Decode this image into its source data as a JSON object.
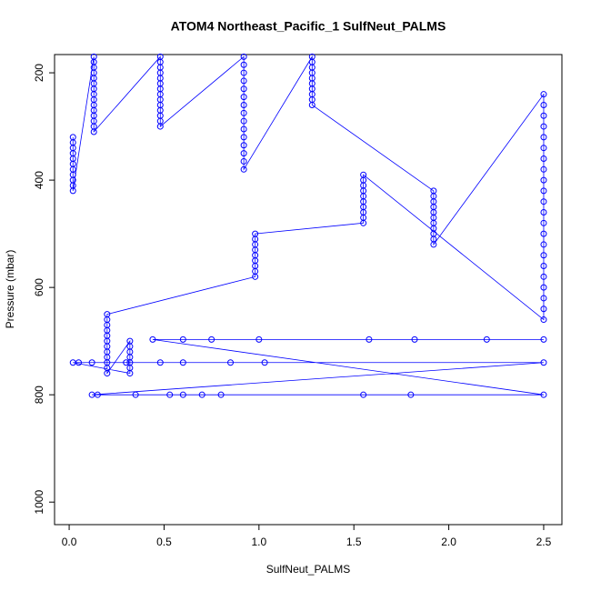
{
  "chart_data": {
    "type": "scatter-line",
    "title": "ATOM4 Northeast_Pacific_1 SulfNeut_PALMS",
    "x_label": "SulfNeut_PALMS",
    "y_label": "Pressure (mbar)",
    "color": "#0000ff",
    "xlim": [
      -0.077,
      2.596
    ],
    "ylim": [
      1042,
      166
    ],
    "xticks": [
      {
        "value": 0,
        "label": "0.0"
      },
      0.5,
      {
        "value": 1,
        "label": "1.0"
      },
      1.5,
      {
        "value": 2,
        "label": "2.0"
      },
      2.5
    ],
    "yticks": [
      200,
      400,
      600,
      800,
      1000
    ],
    "x": [
      0.02,
      0.02,
      0.02,
      0.02,
      0.02,
      0.02,
      0.02,
      0.02,
      0.02,
      0.02,
      0.02,
      0.13,
      0.13,
      0.13,
      0.13,
      0.13,
      0.13,
      0.13,
      0.13,
      0.13,
      0.13,
      0.13,
      0.13,
      0.13,
      0.13,
      0.13,
      0.48,
      0.48,
      0.48,
      0.48,
      0.48,
      0.48,
      0.48,
      0.48,
      0.48,
      0.48,
      0.48,
      0.48,
      0.48,
      0.48,
      0.92,
      0.92,
      0.92,
      0.92,
      0.92,
      0.92,
      0.92,
      0.92,
      0.92,
      0.92,
      0.92,
      0.92,
      0.92,
      0.92,
      0.92,
      1.28,
      1.28,
      1.28,
      1.28,
      1.28,
      1.28,
      1.28,
      1.28,
      1.28,
      1.28,
      1.92,
      1.92,
      1.92,
      1.92,
      1.92,
      1.92,
      1.92,
      1.92,
      1.92,
      1.92,
      1.92,
      2.5,
      2.5,
      2.5,
      2.5,
      2.5,
      2.5,
      2.5,
      2.5,
      2.5,
      2.5,
      2.5,
      2.5,
      2.5,
      2.5,
      2.5,
      2.5,
      2.5,
      2.5,
      2.5,
      2.5,
      2.5,
      2.5,
      1.55,
      1.55,
      1.55,
      1.55,
      1.55,
      1.55,
      1.55,
      1.55,
      1.55,
      1.55,
      0.98,
      0.98,
      0.98,
      0.98,
      0.98,
      0.98,
      0.98,
      0.98,
      0.98,
      0.2,
      0.2,
      0.2,
      0.2,
      0.2,
      0.2,
      0.2,
      0.2,
      0.2,
      0.2,
      0.2,
      0.2,
      0.32,
      0.32,
      0.32,
      0.32,
      0.32,
      0.32,
      0.32,
      0.02,
      0.05,
      0.12,
      0.3,
      0.48,
      0.6,
      0.85,
      1.03,
      2.5,
      0.12,
      0.15,
      0.35,
      0.53,
      0.6,
      0.7,
      0.8,
      1.55,
      1.8,
      2.5,
      0.44,
      0.6,
      0.75,
      1.0,
      1.58,
      1.82,
      2.2,
      2.5
    ],
    "y": [
      320,
      330,
      340,
      350,
      360,
      370,
      380,
      390,
      400,
      410,
      420,
      170,
      180,
      190,
      200,
      210,
      220,
      230,
      240,
      250,
      260,
      270,
      280,
      290,
      300,
      310,
      170,
      180,
      190,
      200,
      210,
      220,
      230,
      240,
      250,
      260,
      270,
      280,
      290,
      300,
      170,
      185,
      200,
      215,
      230,
      245,
      260,
      275,
      290,
      305,
      320,
      335,
      350,
      365,
      380,
      170,
      180,
      190,
      200,
      210,
      220,
      230,
      240,
      250,
      260,
      420,
      430,
      440,
      450,
      460,
      470,
      480,
      490,
      500,
      510,
      520,
      240,
      260,
      280,
      300,
      320,
      340,
      360,
      380,
      400,
      420,
      440,
      460,
      480,
      500,
      520,
      540,
      560,
      580,
      600,
      620,
      640,
      660,
      390,
      400,
      410,
      420,
      430,
      440,
      450,
      460,
      470,
      480,
      500,
      510,
      520,
      530,
      540,
      550,
      560,
      570,
      580,
      650,
      660,
      670,
      680,
      690,
      700,
      710,
      720,
      730,
      740,
      750,
      760,
      700,
      710,
      720,
      730,
      740,
      750,
      760,
      740,
      740,
      740,
      740,
      740,
      740,
      740,
      740,
      740,
      800,
      800,
      800,
      800,
      800,
      800,
      800,
      800,
      800,
      800,
      697,
      697,
      697,
      697,
      697,
      697,
      697,
      697
    ]
  }
}
